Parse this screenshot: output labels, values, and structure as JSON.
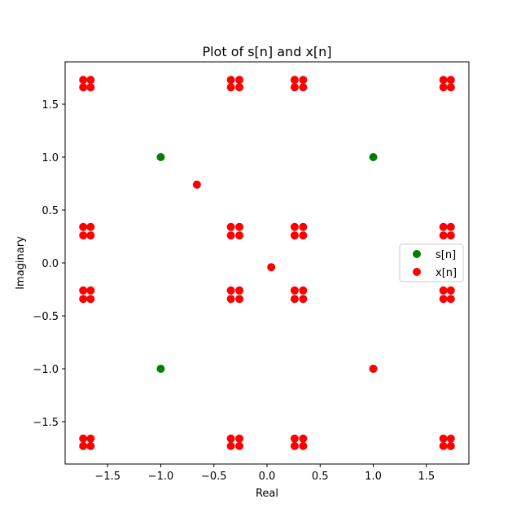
{
  "chart_data": {
    "type": "scatter",
    "title": "Plot of s[n] and x[n]",
    "xlabel": "Real",
    "ylabel": "Imaginary",
    "xlim": [
      -1.9,
      1.9
    ],
    "ylim": [
      -1.9,
      1.9
    ],
    "xticks": [
      -1.5,
      -1.0,
      -0.5,
      0.0,
      0.5,
      1.0,
      1.5
    ],
    "xtick_labels": [
      "−1.5",
      "−1.0",
      "−0.5",
      "0.0",
      "0.5",
      "1.0",
      "1.5"
    ],
    "yticks": [
      -1.5,
      -1.0,
      -0.5,
      0.0,
      0.5,
      1.0,
      1.5
    ],
    "ytick_labels": [
      "−1.5",
      "−1.0",
      "−0.5",
      "0.0",
      "0.5",
      "1.0",
      "1.5"
    ],
    "grid": false,
    "legend_position": "center-right",
    "series": [
      {
        "name": "s[n]",
        "color": "#008000",
        "points": [
          [
            -1,
            1
          ],
          [
            1,
            1
          ],
          [
            -1,
            -1
          ],
          [
            1,
            -1
          ]
        ]
      },
      {
        "name": "x[n]",
        "color": "#ff0000",
        "points": [
          [
            -1.73,
            1.73
          ],
          [
            -1.66,
            1.73
          ],
          [
            -1.73,
            1.66
          ],
          [
            -1.66,
            1.66
          ],
          [
            -0.34,
            1.73
          ],
          [
            -0.26,
            1.73
          ],
          [
            -0.34,
            1.66
          ],
          [
            -0.26,
            1.66
          ],
          [
            0.26,
            1.73
          ],
          [
            0.34,
            1.73
          ],
          [
            0.26,
            1.66
          ],
          [
            0.34,
            1.66
          ],
          [
            1.66,
            1.73
          ],
          [
            1.73,
            1.73
          ],
          [
            1.66,
            1.66
          ],
          [
            1.73,
            1.66
          ],
          [
            -1.73,
            0.34
          ],
          [
            -1.66,
            0.34
          ],
          [
            -1.73,
            0.26
          ],
          [
            -1.66,
            0.26
          ],
          [
            -0.34,
            0.34
          ],
          [
            -0.26,
            0.34
          ],
          [
            -0.34,
            0.26
          ],
          [
            -0.26,
            0.26
          ],
          [
            0.26,
            0.34
          ],
          [
            0.34,
            0.34
          ],
          [
            0.26,
            0.26
          ],
          [
            0.34,
            0.26
          ],
          [
            1.66,
            0.34
          ],
          [
            1.73,
            0.34
          ],
          [
            1.66,
            0.26
          ],
          [
            1.73,
            0.26
          ],
          [
            -1.73,
            -0.26
          ],
          [
            -1.66,
            -0.26
          ],
          [
            -1.73,
            -0.34
          ],
          [
            -1.66,
            -0.34
          ],
          [
            -0.34,
            -0.26
          ],
          [
            -0.26,
            -0.26
          ],
          [
            -0.34,
            -0.34
          ],
          [
            -0.26,
            -0.34
          ],
          [
            0.26,
            -0.26
          ],
          [
            0.34,
            -0.26
          ],
          [
            0.26,
            -0.34
          ],
          [
            0.34,
            -0.34
          ],
          [
            1.66,
            -0.26
          ],
          [
            1.73,
            -0.26
          ],
          [
            1.66,
            -0.34
          ],
          [
            1.73,
            -0.34
          ],
          [
            -1.73,
            -1.66
          ],
          [
            -1.66,
            -1.66
          ],
          [
            -1.73,
            -1.73
          ],
          [
            -1.66,
            -1.73
          ],
          [
            -0.34,
            -1.66
          ],
          [
            -0.26,
            -1.66
          ],
          [
            -0.34,
            -1.73
          ],
          [
            -0.26,
            -1.73
          ],
          [
            0.26,
            -1.66
          ],
          [
            0.34,
            -1.66
          ],
          [
            0.26,
            -1.73
          ],
          [
            0.34,
            -1.73
          ],
          [
            1.66,
            -1.66
          ],
          [
            1.73,
            -1.66
          ],
          [
            1.66,
            -1.73
          ],
          [
            1.73,
            -1.73
          ],
          [
            -0.66,
            0.74
          ],
          [
            0.04,
            -0.04
          ],
          [
            1.0,
            -1.0
          ]
        ]
      }
    ]
  }
}
